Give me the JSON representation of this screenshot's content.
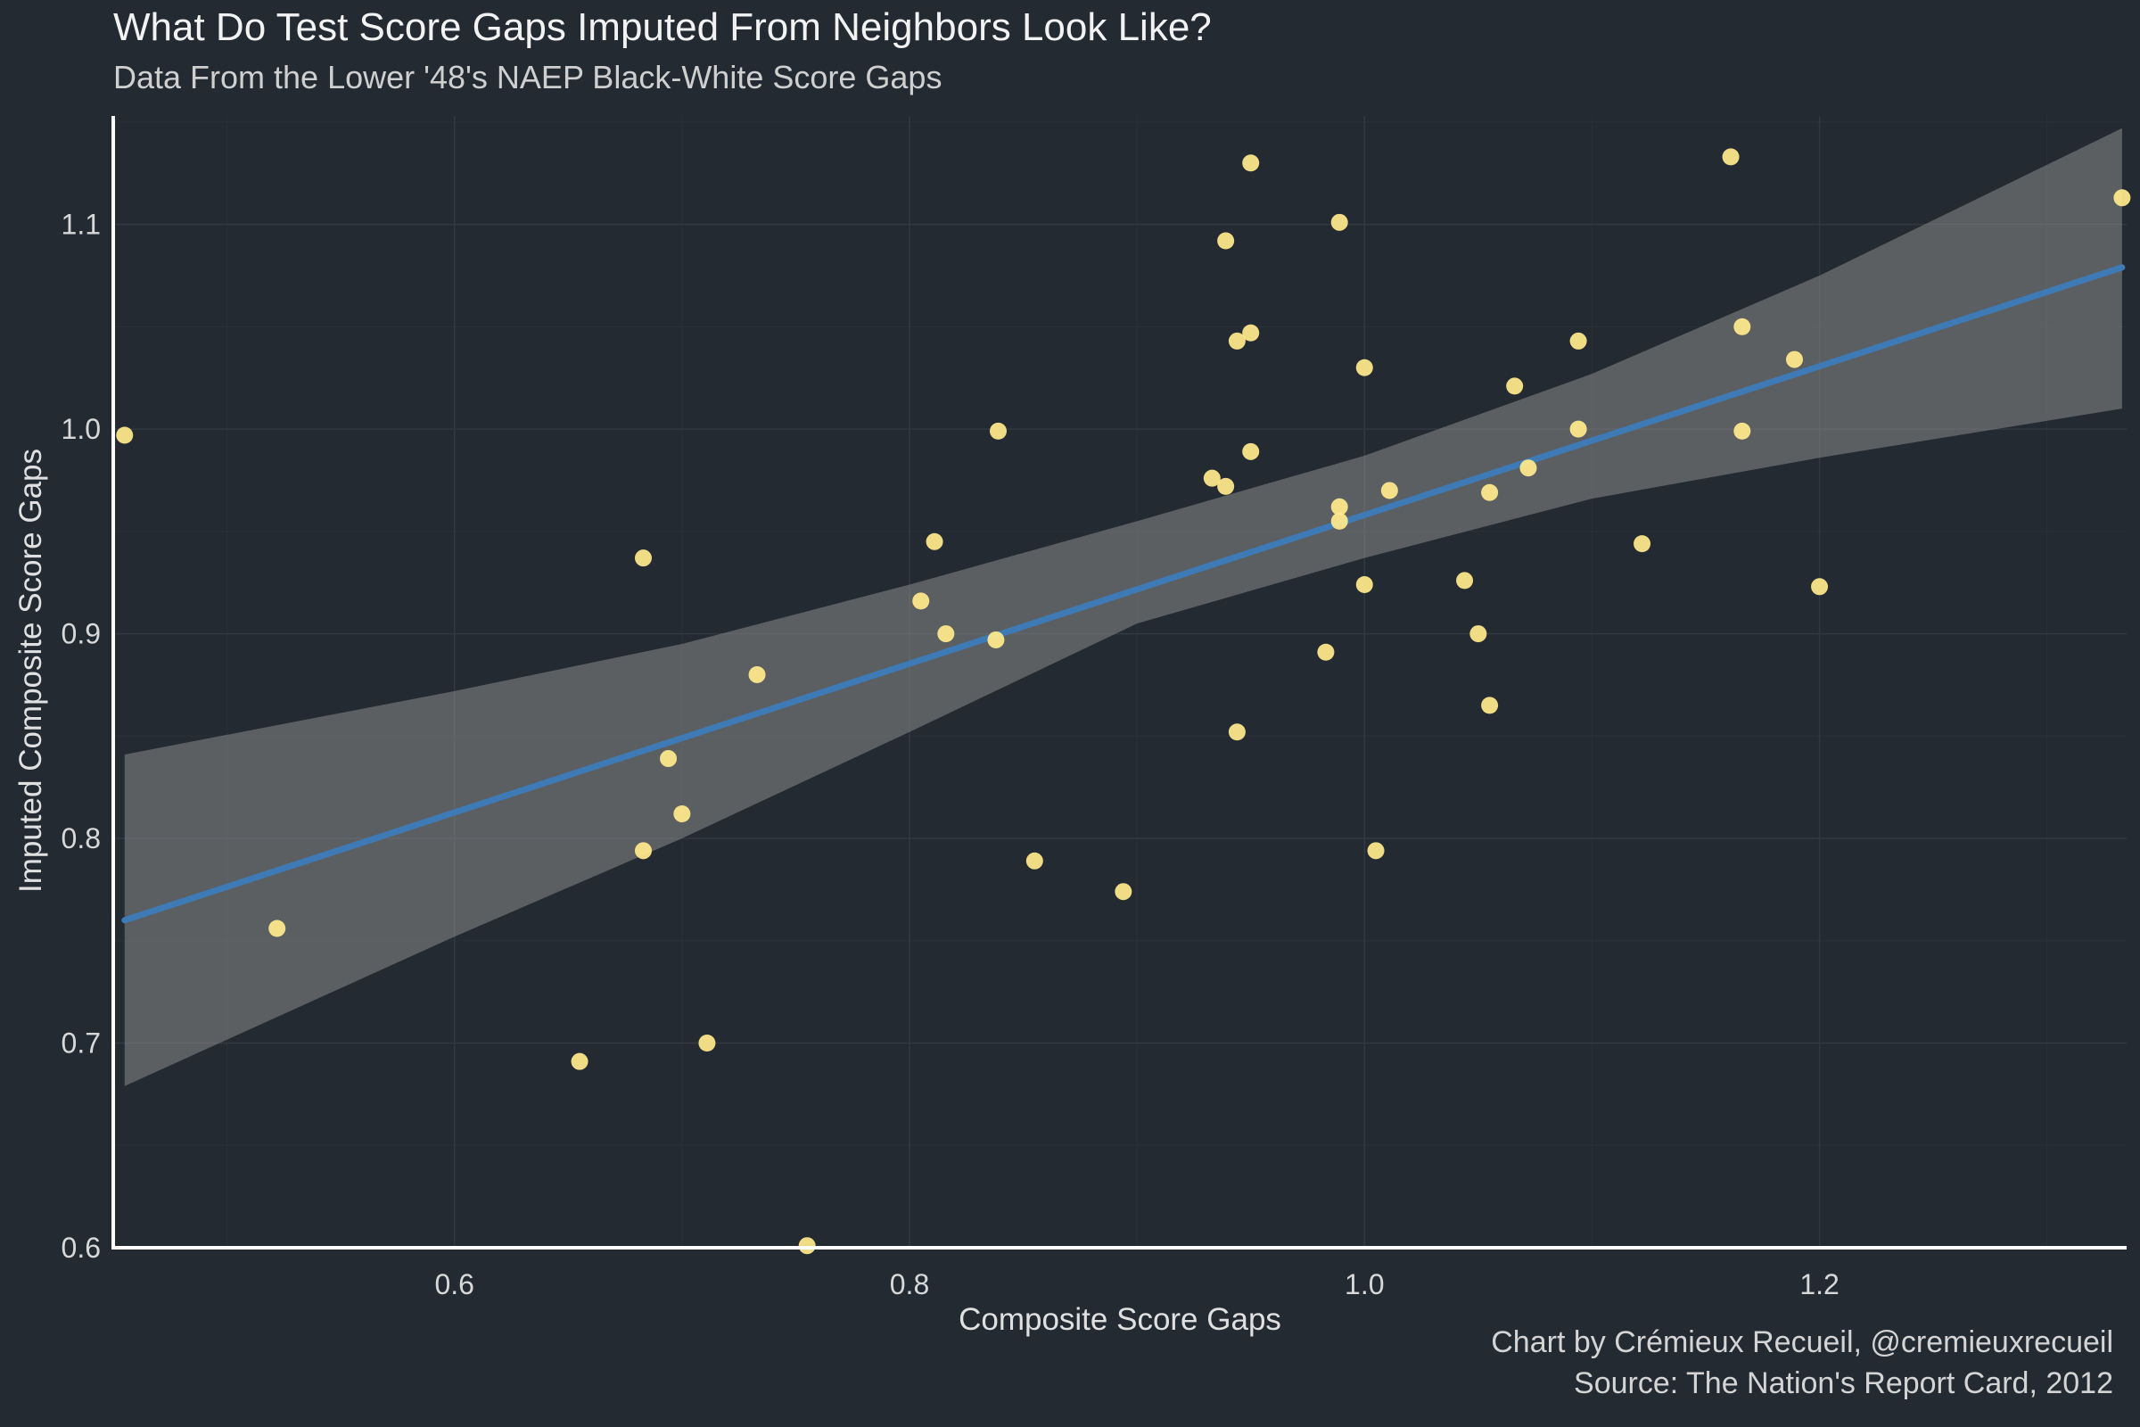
{
  "chart_data": {
    "type": "scatter",
    "title": "What Do Test Score Gaps Imputed From Neighbors Look Like?",
    "subtitle": "Data From the Lower '48's NAEP Black-White Score Gaps",
    "xlabel": "Composite Score Gaps",
    "ylabel": "Imputed Composite Score Gaps",
    "caption": [
      "Chart by Crémieux Recueil, @cremieuxrecueil",
      "Source: The Nation's Report Card, 2012"
    ],
    "xlim": [
      0.45,
      1.335
    ],
    "ylim": [
      0.6,
      1.153
    ],
    "xticks": [
      0.6,
      0.8,
      1.0,
      1.2
    ],
    "xtick_labels": [
      "0.6",
      "0.8",
      "1.0",
      "1.2"
    ],
    "yticks": [
      0.6,
      0.7,
      0.8,
      0.9,
      1.0,
      1.1
    ],
    "ytick_labels": [
      "0.6",
      "0.7",
      "0.8",
      "0.9",
      "1.0",
      "1.1"
    ],
    "grid": true,
    "colors": {
      "background": "#242a32",
      "points": "#ffe98c",
      "trend_line": "#3e7bb6",
      "confidence_band": "#8a8a8a",
      "grid": "#323942",
      "axis": "#ffffff"
    },
    "points": [
      {
        "x": 0.455,
        "y": 0.997
      },
      {
        "x": 0.522,
        "y": 0.756
      },
      {
        "x": 0.655,
        "y": 0.691
      },
      {
        "x": 0.683,
        "y": 0.937
      },
      {
        "x": 0.683,
        "y": 0.794
      },
      {
        "x": 0.694,
        "y": 0.839
      },
      {
        "x": 0.7,
        "y": 0.812
      },
      {
        "x": 0.711,
        "y": 0.7
      },
      {
        "x": 0.733,
        "y": 0.88
      },
      {
        "x": 0.755,
        "y": 0.601
      },
      {
        "x": 0.805,
        "y": 0.916
      },
      {
        "x": 0.811,
        "y": 0.945
      },
      {
        "x": 0.816,
        "y": 0.9
      },
      {
        "x": 0.838,
        "y": 0.897
      },
      {
        "x": 0.839,
        "y": 0.999
      },
      {
        "x": 0.855,
        "y": 0.789
      },
      {
        "x": 0.894,
        "y": 0.774
      },
      {
        "x": 0.933,
        "y": 0.976
      },
      {
        "x": 0.939,
        "y": 0.972
      },
      {
        "x": 0.939,
        "y": 1.092
      },
      {
        "x": 0.944,
        "y": 0.852
      },
      {
        "x": 0.944,
        "y": 1.043
      },
      {
        "x": 0.95,
        "y": 1.047
      },
      {
        "x": 0.95,
        "y": 1.13
      },
      {
        "x": 0.95,
        "y": 0.989
      },
      {
        "x": 0.983,
        "y": 0.891
      },
      {
        "x": 0.989,
        "y": 0.962
      },
      {
        "x": 0.989,
        "y": 0.955
      },
      {
        "x": 0.989,
        "y": 1.101
      },
      {
        "x": 1.0,
        "y": 1.03
      },
      {
        "x": 1.0,
        "y": 0.924
      },
      {
        "x": 1.005,
        "y": 0.794
      },
      {
        "x": 1.011,
        "y": 0.97
      },
      {
        "x": 1.044,
        "y": 0.926
      },
      {
        "x": 1.05,
        "y": 0.9
      },
      {
        "x": 1.055,
        "y": 0.969
      },
      {
        "x": 1.055,
        "y": 0.865
      },
      {
        "x": 1.066,
        "y": 1.021
      },
      {
        "x": 1.072,
        "y": 0.981
      },
      {
        "x": 1.094,
        "y": 1.043
      },
      {
        "x": 1.094,
        "y": 1.0
      },
      {
        "x": 1.122,
        "y": 0.944
      },
      {
        "x": 1.161,
        "y": 1.133
      },
      {
        "x": 1.166,
        "y": 1.05
      },
      {
        "x": 1.166,
        "y": 0.999
      },
      {
        "x": 1.189,
        "y": 1.034
      },
      {
        "x": 1.2,
        "y": 0.923
      },
      {
        "x": 1.333,
        "y": 1.113
      }
    ],
    "regression": {
      "x": [
        0.455,
        1.333
      ],
      "y": [
        0.76,
        1.079
      ]
    },
    "confidence_band": {
      "x": [
        0.455,
        0.6,
        0.7,
        0.8,
        0.9,
        1.0,
        1.1,
        1.2,
        1.333
      ],
      "upper": [
        0.841,
        0.872,
        0.895,
        0.924,
        0.955,
        0.987,
        1.027,
        1.075,
        1.147
      ],
      "lower": [
        0.679,
        0.752,
        0.8,
        0.852,
        0.905,
        0.937,
        0.966,
        0.986,
        1.01
      ]
    }
  }
}
